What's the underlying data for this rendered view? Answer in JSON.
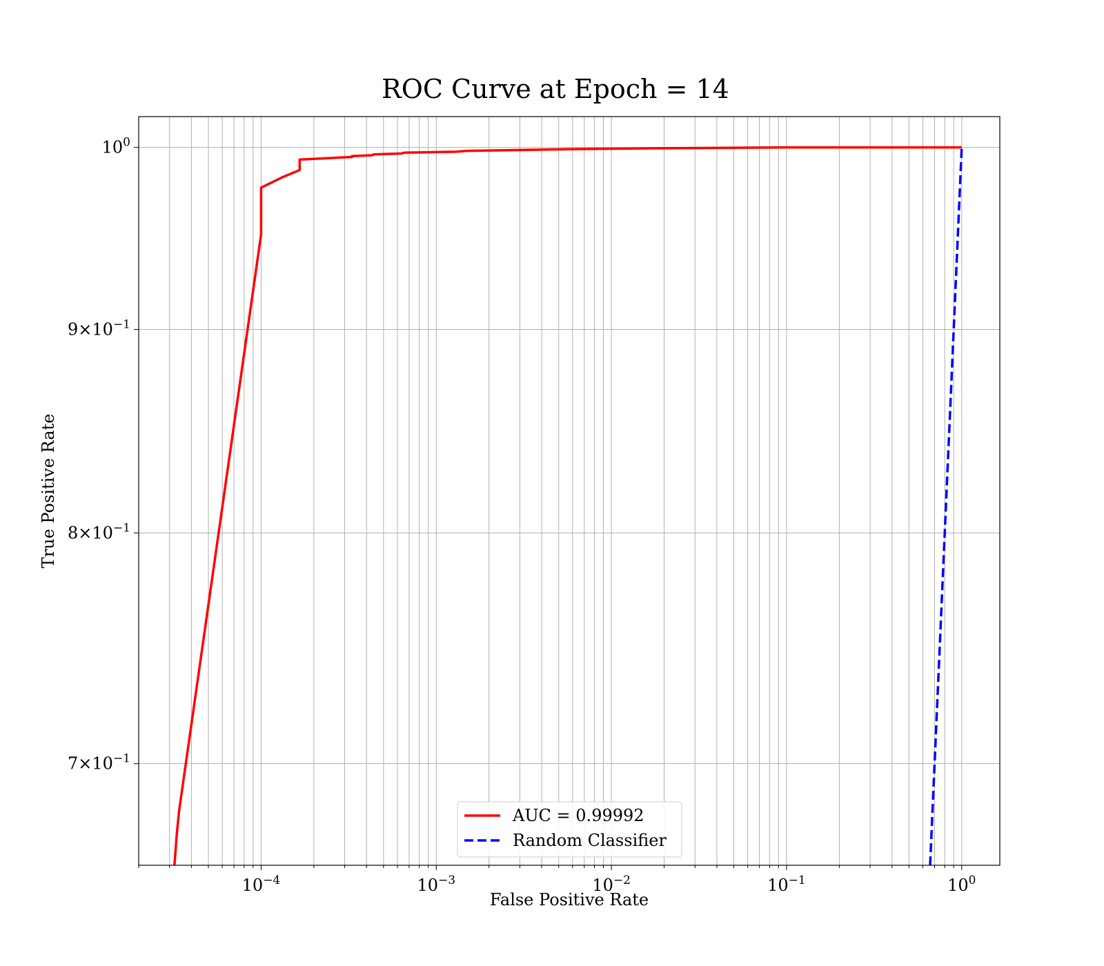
{
  "chart_data": {
    "type": "line",
    "title": "ROC Curve at Epoch = 14",
    "xlabel": "False Positive Rate",
    "ylabel": "True Positive Rate",
    "xscale": "log",
    "yscale": "log",
    "xlim": [
      2e-05,
      1.65
    ],
    "ylim": [
      0.66,
      1.018
    ],
    "grid": "major and minor",
    "legend_location": "lower center",
    "x_ticks": [
      {
        "base": "10",
        "exp": "−4"
      },
      {
        "base": "10",
        "exp": "−3"
      },
      {
        "base": "10",
        "exp": "−2"
      },
      {
        "base": "10",
        "exp": "−1"
      },
      {
        "base": "10",
        "exp": "0"
      }
    ],
    "y_ticks": [
      {
        "mant": "7",
        "times": "×",
        "base": "10",
        "exp": "−1"
      },
      {
        "mant": "8",
        "times": "×",
        "base": "10",
        "exp": "−1"
      },
      {
        "mant": "9",
        "times": "×",
        "base": "10",
        "exp": "−1"
      },
      {
        "mant": "",
        "times": "",
        "base": "10",
        "exp": "0"
      }
    ],
    "series": [
      {
        "name": "AUC = 0.99992",
        "color": "#ff0000",
        "style": "solid",
        "x": [
          3.2e-05,
          3.3e-05,
          3.4e-05,
          0.0001,
          0.0001,
          0.000133,
          0.000166,
          0.000166,
          0.00033,
          0.00033,
          0.00043,
          0.00044,
          0.00063,
          0.00066,
          0.0013,
          0.0015,
          0.006,
          0.018,
          0.1,
          1.0
        ],
        "y": [
          0.66,
          0.672,
          0.681,
          0.951,
          0.977,
          0.983,
          0.987,
          0.993,
          0.9945,
          0.995,
          0.9955,
          0.996,
          0.9965,
          0.997,
          0.9975,
          0.998,
          0.999,
          0.9995,
          1.0,
          1.0
        ]
      },
      {
        "name": "Random Classifier",
        "color": "#0000ff",
        "style": "dashed",
        "x": [
          0.66,
          1.0
        ],
        "y": [
          0.66,
          1.0
        ]
      }
    ]
  }
}
